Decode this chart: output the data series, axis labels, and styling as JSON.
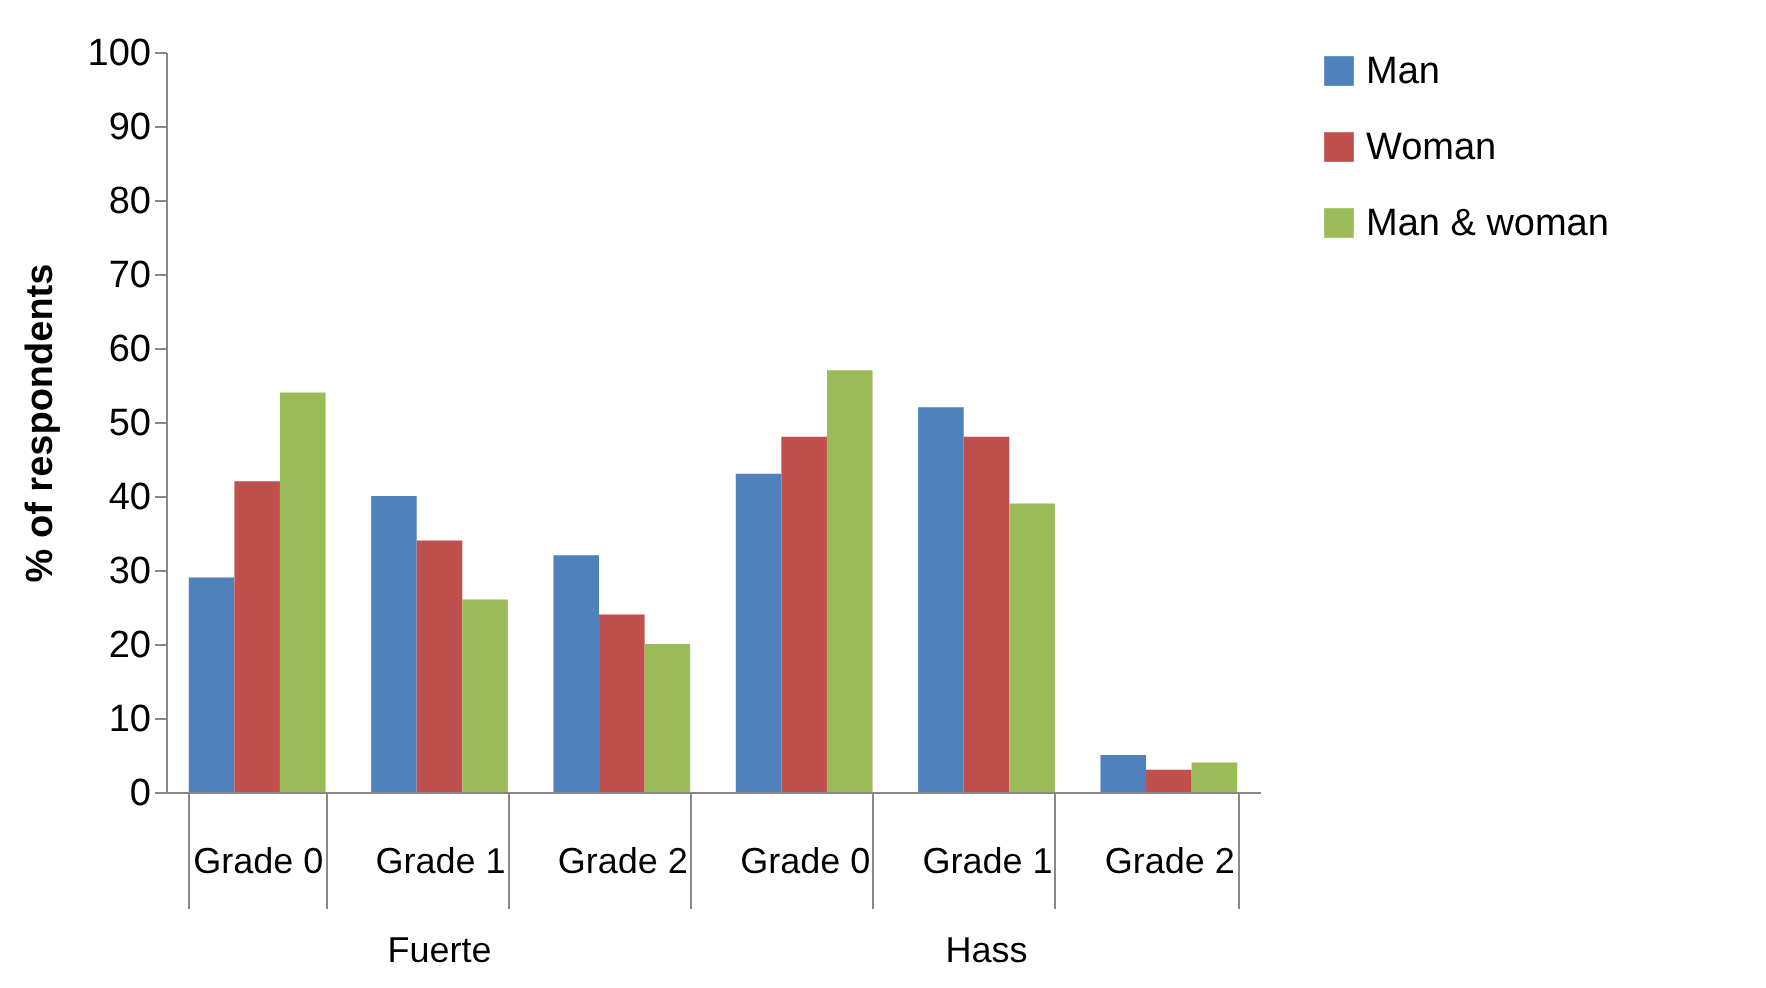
{
  "chart_data": {
    "type": "bar",
    "ylabel": "% of respondents",
    "categories": [
      "Grade 0",
      "Grade 1",
      "Grade 2",
      "Grade 0",
      "Grade 1",
      "Grade 2"
    ],
    "annotations": [
      "Fuerte",
      "Hass"
    ],
    "series": [
      {
        "name": "Man",
        "color": "#4f81bd",
        "values": [
          29,
          40,
          32,
          43,
          52,
          5
        ]
      },
      {
        "name": "Woman",
        "color": "#c0504d",
        "values": [
          42,
          34,
          24,
          48,
          48,
          3
        ]
      },
      {
        "name": "Man & woman",
        "color": "#9bbb59",
        "values": [
          54,
          26,
          20,
          57,
          39,
          4
        ]
      }
    ],
    "ylim": [
      0,
      100
    ],
    "yticks": [
      0,
      10,
      20,
      30,
      40,
      50,
      60,
      70,
      80,
      90,
      100
    ],
    "grid": false,
    "legend": "right"
  }
}
